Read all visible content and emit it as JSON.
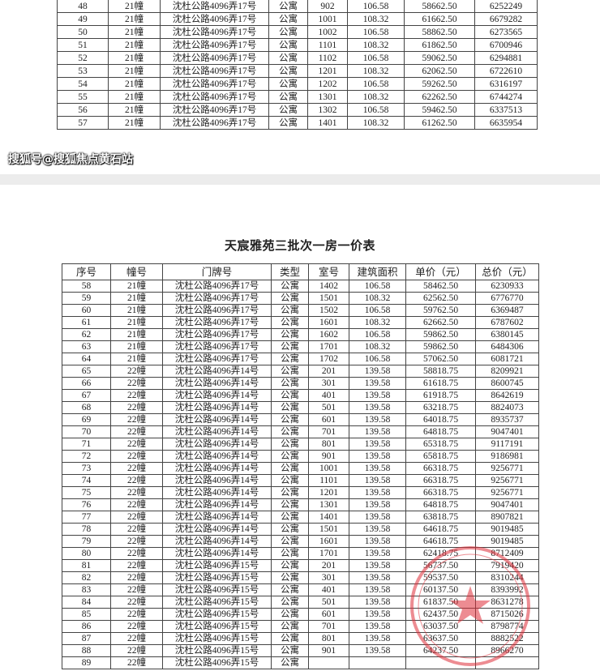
{
  "document": {
    "title": "天宸雅苑三批次一房一价表",
    "headers": [
      "序号",
      "幢号",
      "门牌号",
      "类型",
      "室号",
      "建筑面积",
      "单价（元）",
      "总价（元）"
    ],
    "page1_rows": [
      [
        "48",
        "21幢",
        "沈杜公路4096弄17号",
        "公寓",
        "902",
        "106.58",
        "58662.50",
        "6252249"
      ],
      [
        "49",
        "21幢",
        "沈杜公路4096弄17号",
        "公寓",
        "1001",
        "108.32",
        "61662.50",
        "6679282"
      ],
      [
        "50",
        "21幢",
        "沈杜公路4096弄17号",
        "公寓",
        "1002",
        "106.58",
        "58862.50",
        "6273565"
      ],
      [
        "51",
        "21幢",
        "沈杜公路4096弄17号",
        "公寓",
        "1101",
        "108.32",
        "61862.50",
        "6700946"
      ],
      [
        "52",
        "21幢",
        "沈杜公路4096弄17号",
        "公寓",
        "1102",
        "106.58",
        "59062.50",
        "6294881"
      ],
      [
        "53",
        "21幢",
        "沈杜公路4096弄17号",
        "公寓",
        "1201",
        "108.32",
        "62062.50",
        "6722610"
      ],
      [
        "54",
        "21幢",
        "沈杜公路4096弄17号",
        "公寓",
        "1202",
        "106.58",
        "59262.50",
        "6316197"
      ],
      [
        "55",
        "21幢",
        "沈杜公路4096弄17号",
        "公寓",
        "1301",
        "108.32",
        "62262.50",
        "6744274"
      ],
      [
        "56",
        "21幢",
        "沈杜公路4096弄17号",
        "公寓",
        "1302",
        "106.58",
        "59462.50",
        "6337513"
      ],
      [
        "57",
        "21幢",
        "沈杜公路4096弄17号",
        "公寓",
        "1401",
        "108.32",
        "61262.50",
        "6635954"
      ]
    ],
    "page2_rows": [
      [
        "58",
        "21幢",
        "沈杜公路4096弄17号",
        "公寓",
        "1402",
        "106.58",
        "58462.50",
        "6230933"
      ],
      [
        "59",
        "21幢",
        "沈杜公路4096弄17号",
        "公寓",
        "1501",
        "108.32",
        "62562.50",
        "6776770"
      ],
      [
        "60",
        "21幢",
        "沈杜公路4096弄17号",
        "公寓",
        "1502",
        "106.58",
        "59762.50",
        "6369487"
      ],
      [
        "61",
        "21幢",
        "沈杜公路4096弄17号",
        "公寓",
        "1601",
        "108.32",
        "62662.50",
        "6787602"
      ],
      [
        "62",
        "21幢",
        "沈杜公路4096弄17号",
        "公寓",
        "1602",
        "106.58",
        "59862.50",
        "6380145"
      ],
      [
        "63",
        "21幢",
        "沈杜公路4096弄17号",
        "公寓",
        "1701",
        "108.32",
        "59862.50",
        "6484306"
      ],
      [
        "64",
        "21幢",
        "沈杜公路4096弄17号",
        "公寓",
        "1702",
        "106.58",
        "57062.50",
        "6081721"
      ],
      [
        "65",
        "22幢",
        "沈杜公路4096弄14号",
        "公寓",
        "201",
        "139.58",
        "58818.75",
        "8209921"
      ],
      [
        "66",
        "22幢",
        "沈杜公路4096弄14号",
        "公寓",
        "301",
        "139.58",
        "61618.75",
        "8600745"
      ],
      [
        "67",
        "22幢",
        "沈杜公路4096弄14号",
        "公寓",
        "401",
        "139.58",
        "61918.75",
        "8642619"
      ],
      [
        "68",
        "22幢",
        "沈杜公路4096弄14号",
        "公寓",
        "501",
        "139.58",
        "63218.75",
        "8824073"
      ],
      [
        "69",
        "22幢",
        "沈杜公路4096弄14号",
        "公寓",
        "601",
        "139.58",
        "64018.75",
        "8935737"
      ],
      [
        "70",
        "22幢",
        "沈杜公路4096弄14号",
        "公寓",
        "701",
        "139.58",
        "64818.75",
        "9047401"
      ],
      [
        "71",
        "22幢",
        "沈杜公路4096弄14号",
        "公寓",
        "801",
        "139.58",
        "65318.75",
        "9117191"
      ],
      [
        "72",
        "22幢",
        "沈杜公路4096弄14号",
        "公寓",
        "901",
        "139.58",
        "65818.75",
        "9186981"
      ],
      [
        "73",
        "22幢",
        "沈杜公路4096弄14号",
        "公寓",
        "1001",
        "139.58",
        "66318.75",
        "9256771"
      ],
      [
        "74",
        "22幢",
        "沈杜公路4096弄14号",
        "公寓",
        "1101",
        "139.58",
        "66318.75",
        "9256771"
      ],
      [
        "75",
        "22幢",
        "沈杜公路4096弄14号",
        "公寓",
        "1201",
        "139.58",
        "66318.75",
        "9256771"
      ],
      [
        "76",
        "22幢",
        "沈杜公路4096弄14号",
        "公寓",
        "1301",
        "139.58",
        "64818.75",
        "9047401"
      ],
      [
        "77",
        "22幢",
        "沈杜公路4096弄14号",
        "公寓",
        "1401",
        "139.58",
        "63818.75",
        "8907821"
      ],
      [
        "78",
        "22幢",
        "沈杜公路4096弄14号",
        "公寓",
        "1501",
        "139.58",
        "64618.75",
        "9019485"
      ],
      [
        "79",
        "22幢",
        "沈杜公路4096弄14号",
        "公寓",
        "1601",
        "139.58",
        "64618.75",
        "9019485"
      ],
      [
        "80",
        "22幢",
        "沈杜公路4096弄14号",
        "公寓",
        "1701",
        "139.58",
        "62418.75",
        "8712409"
      ],
      [
        "81",
        "22幢",
        "沈杜公路4096弄15号",
        "公寓",
        "201",
        "139.58",
        "56737.50",
        "7919420"
      ],
      [
        "82",
        "22幢",
        "沈杜公路4096弄15号",
        "公寓",
        "301",
        "139.58",
        "59537.50",
        "8310244"
      ],
      [
        "83",
        "22幢",
        "沈杜公路4096弄15号",
        "公寓",
        "401",
        "139.58",
        "60137.50",
        "8393992"
      ],
      [
        "84",
        "22幢",
        "沈杜公路4096弄15号",
        "公寓",
        "501",
        "139.58",
        "61837.50",
        "8631278"
      ],
      [
        "85",
        "22幢",
        "沈杜公路4096弄15号",
        "公寓",
        "601",
        "139.58",
        "62437.50",
        "8715026"
      ],
      [
        "86",
        "22幢",
        "沈杜公路4096弄15号",
        "公寓",
        "701",
        "139.58",
        "63037.50",
        "8798774"
      ],
      [
        "87",
        "22幢",
        "沈杜公路4096弄15号",
        "公寓",
        "801",
        "139.58",
        "63637.50",
        "8882522"
      ],
      [
        "88",
        "22幢",
        "沈杜公路4096弄15号",
        "公寓",
        "901",
        "139.58",
        "64237.50",
        "8966270"
      ],
      [
        "89",
        "22幢",
        "沈杜公路4096弄15号",
        "公寓",
        "",
        "",
        "",
        ""
      ]
    ],
    "stamp_color": "#e0303a"
  },
  "watermark": "搜狐号@搜狐焦点黄石站"
}
